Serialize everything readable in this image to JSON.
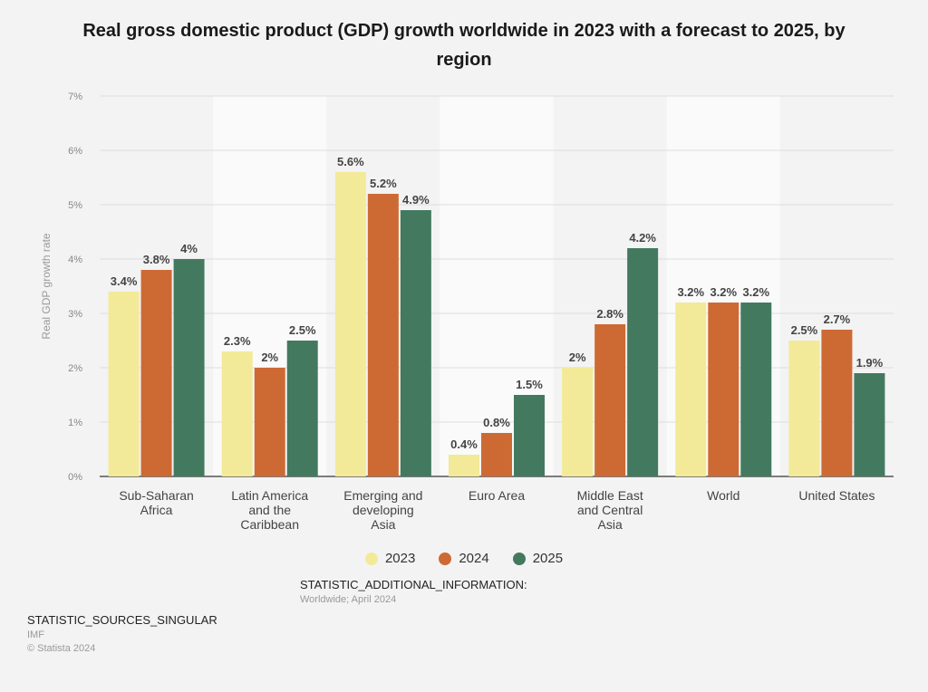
{
  "chart_data": {
    "type": "bar",
    "title": "Real gross domestic product (GDP) growth worldwide in 2023 with a forecast to 2025, by region",
    "ylabel": "Real GDP growth rate",
    "xlabel": "",
    "ylim": [
      0,
      7
    ],
    "yticks": [
      "0%",
      "1%",
      "2%",
      "3%",
      "4%",
      "5%",
      "6%",
      "7%"
    ],
    "categories": [
      [
        "Sub-Saharan",
        "Africa"
      ],
      [
        "Latin America",
        "and the",
        "Caribbean"
      ],
      [
        "Emerging and",
        "developing",
        "Asia"
      ],
      [
        "Euro Area"
      ],
      [
        "Middle East",
        "and Central",
        "Asia"
      ],
      [
        "World"
      ],
      [
        "United States"
      ]
    ],
    "series": [
      {
        "name": "2023",
        "color": "#f2ea98",
        "values": [
          3.4,
          2.3,
          5.6,
          0.4,
          2.0,
          3.2,
          2.5
        ],
        "labels": [
          "3.4%",
          "2.3%",
          "5.6%",
          "0.4%",
          "2%",
          "3.2%",
          "2.5%"
        ]
      },
      {
        "name": "2024",
        "color": "#cd6a34",
        "values": [
          3.8,
          2.0,
          5.2,
          0.8,
          2.8,
          3.2,
          2.7
        ],
        "labels": [
          "3.8%",
          "2%",
          "5.2%",
          "0.8%",
          "2.8%",
          "3.2%",
          "2.7%"
        ]
      },
      {
        "name": "2025",
        "color": "#437a5f",
        "values": [
          4.0,
          2.5,
          4.9,
          1.5,
          4.2,
          3.2,
          1.9
        ],
        "labels": [
          "4%",
          "2.5%",
          "4.9%",
          "1.5%",
          "4.2%",
          "3.2%",
          "1.9%"
        ]
      }
    ],
    "legend_position": "bottom-center",
    "grid": true
  },
  "additional_info": {
    "heading": "STATISTIC_ADDITIONAL_INFORMATION:",
    "text": "Worldwide; April 2024"
  },
  "sources": {
    "heading": "STATISTIC_SOURCES_SINGULAR",
    "source": "IMF",
    "copyright": "© Statista 2024"
  }
}
